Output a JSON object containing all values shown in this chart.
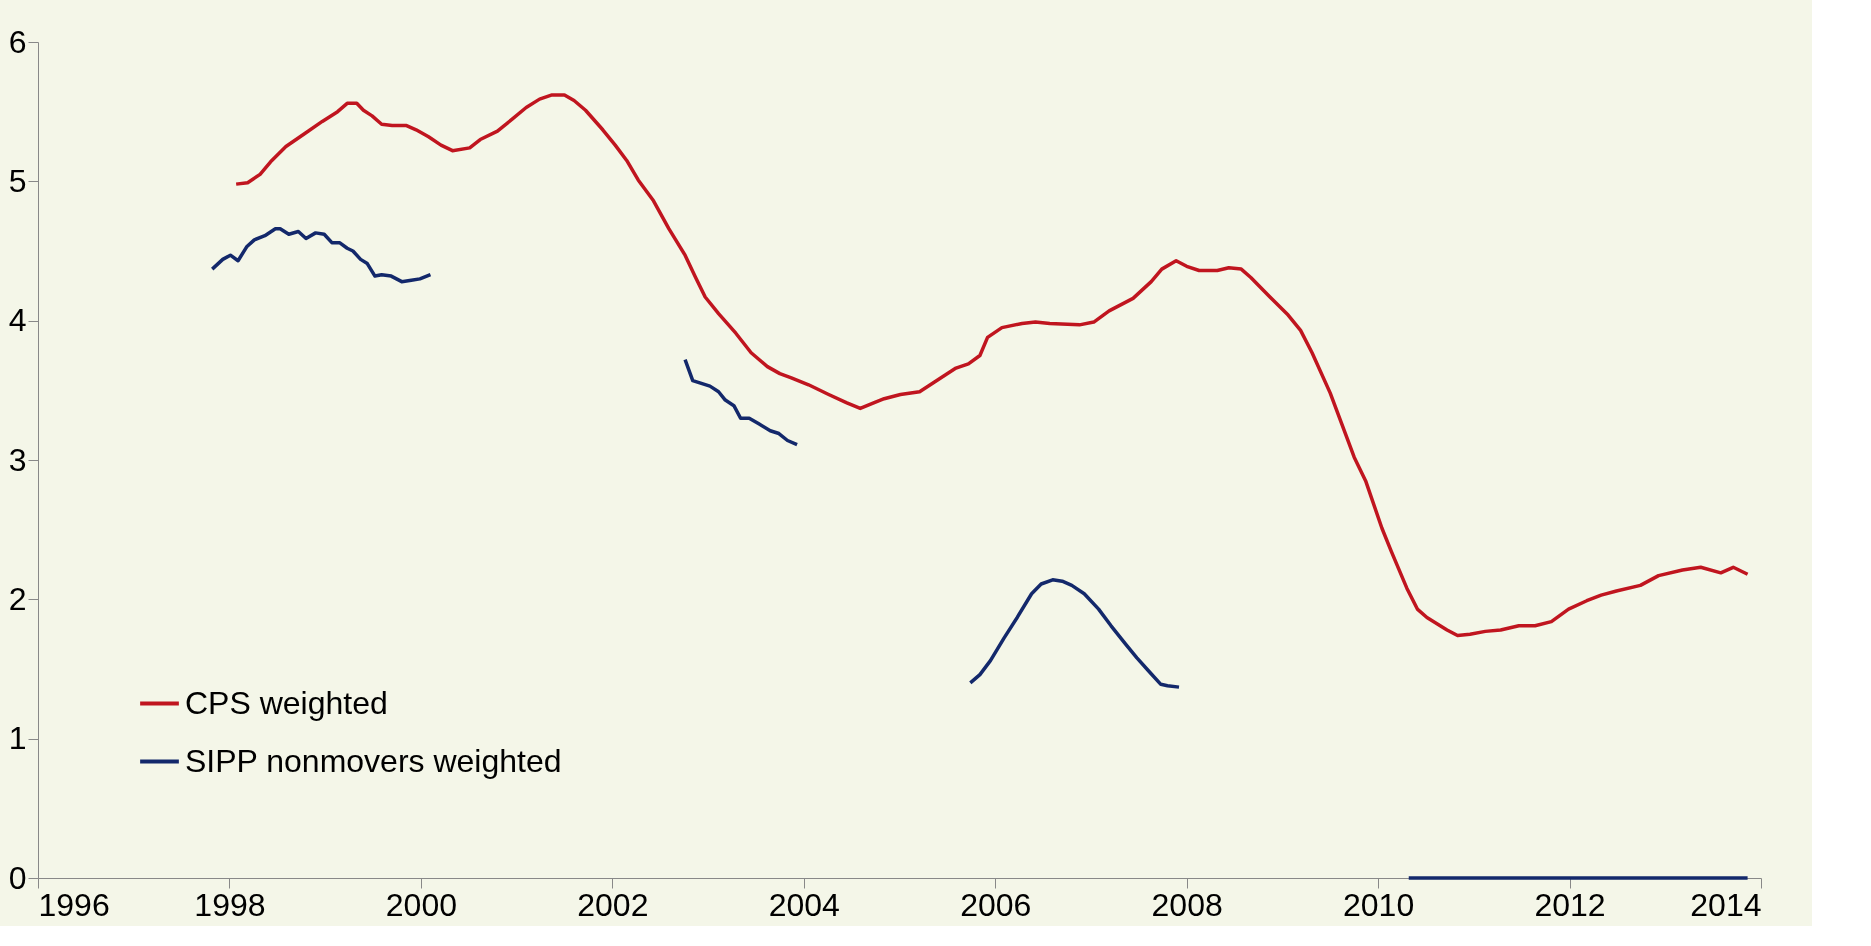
{
  "chart_data": {
    "type": "line",
    "xlim": [
      1996,
      2014
    ],
    "xticks": [
      1996,
      1998,
      2000,
      2002,
      2004,
      2006,
      2008,
      2010,
      2012,
      2014
    ],
    "ylim": [
      0,
      6
    ],
    "yticks": [
      0,
      1,
      2,
      3,
      4,
      5,
      6
    ],
    "grid": false,
    "legend": "bottom left",
    "line_style": "solid",
    "marker": "none",
    "series": [
      {
        "name": "CPS weighted",
        "color": "#c0151f",
        "x": [
          1998.07,
          1998.19,
          1998.32,
          1998.43,
          1998.59,
          1998.78,
          1998.97,
          1999.13,
          1999.23,
          1999.33,
          1999.4,
          1999.49,
          1999.59,
          1999.7,
          1999.85,
          1999.95,
          2000.08,
          2000.21,
          2000.33,
          2000.51,
          2000.62,
          2000.8,
          2000.96,
          2001.1,
          2001.24,
          2001.37,
          2001.5,
          2001.6,
          2001.72,
          2001.9,
          2002.03,
          2002.15,
          2002.27,
          2002.43,
          2002.59,
          2002.76,
          2002.87,
          2002.97,
          2003.11,
          2003.29,
          2003.45,
          2003.62,
          2003.75,
          2003.87,
          2004.05,
          2004.26,
          2004.45,
          2004.59,
          2004.73,
          2004.84,
          2005.01,
          2005.21,
          2005.41,
          2005.59,
          2005.72,
          2005.84,
          2005.92,
          2006.07,
          2006.28,
          2006.42,
          2006.57,
          2006.88,
          2007.03,
          2007.19,
          2007.44,
          2007.63,
          2007.74,
          2007.89,
          2008.0,
          2008.13,
          2008.32,
          2008.44,
          2008.57,
          2008.67,
          2008.87,
          2009.06,
          2009.19,
          2009.31,
          2009.5,
          2009.75,
          2009.87,
          2010.04,
          2010.14,
          2010.3,
          2010.41,
          2010.51,
          2010.72,
          2010.83,
          2010.96,
          2011.12,
          2011.28,
          2011.47,
          2011.64,
          2011.81,
          2011.99,
          2012.18,
          2012.33,
          2012.49,
          2012.74,
          2012.93,
          2013.18,
          2013.37,
          2013.58,
          2013.71,
          2013.86
        ],
        "values": [
          4.98,
          4.99,
          5.05,
          5.14,
          5.25,
          5.34,
          5.43,
          5.5,
          5.56,
          5.56,
          5.51,
          5.47,
          5.41,
          5.4,
          5.4,
          5.37,
          5.32,
          5.26,
          5.22,
          5.24,
          5.3,
          5.36,
          5.45,
          5.53,
          5.59,
          5.62,
          5.62,
          5.58,
          5.51,
          5.37,
          5.26,
          5.15,
          5.01,
          4.86,
          4.66,
          4.47,
          4.31,
          4.17,
          4.05,
          3.91,
          3.77,
          3.67,
          3.62,
          3.59,
          3.54,
          3.47,
          3.41,
          3.37,
          3.41,
          3.44,
          3.47,
          3.49,
          3.58,
          3.66,
          3.69,
          3.75,
          3.88,
          3.95,
          3.98,
          3.99,
          3.98,
          3.97,
          3.99,
          4.07,
          4.16,
          4.28,
          4.37,
          4.43,
          4.39,
          4.36,
          4.36,
          4.38,
          4.37,
          4.31,
          4.17,
          4.04,
          3.93,
          3.77,
          3.48,
          3.02,
          2.85,
          2.51,
          2.34,
          2.08,
          1.93,
          1.87,
          1.78,
          1.74,
          1.75,
          1.77,
          1.78,
          1.81,
          1.81,
          1.84,
          1.93,
          1.99,
          2.03,
          2.06,
          2.1,
          2.17,
          2.21,
          2.23,
          2.19,
          2.23,
          2.18
        ]
      },
      {
        "name": "SIPP nonmovers weighted",
        "color": "#13286b",
        "x": [
          1997.82,
          1997.93,
          1998.01,
          1998.09,
          1998.18,
          1998.26,
          1998.37,
          1998.48,
          1998.53,
          1998.62,
          1998.72,
          1998.8,
          1998.9,
          1998.99,
          1999.07,
          1999.15,
          1999.23,
          1999.29,
          1999.37,
          1999.44,
          1999.52,
          1999.59,
          1999.69,
          1999.8,
          1999.9,
          1999.99,
          2000.1,
          null,
          2002.76,
          2002.84,
          2003.02,
          2003.11,
          2003.18,
          2003.27,
          2003.34,
          2003.43,
          2003.53,
          2003.65,
          2003.74,
          2003.83,
          2003.93,
          null,
          2005.74,
          2005.84,
          2005.95,
          2006.09,
          2006.23,
          2006.38,
          2006.48,
          2006.6,
          2006.7,
          2006.8,
          2006.93,
          2007.08,
          2007.21,
          2007.36,
          2007.48,
          2007.61,
          2007.73,
          2007.8,
          2007.92,
          null,
          2010.32,
          2013.86
        ],
        "values": [
          4.37,
          4.44,
          4.47,
          4.43,
          4.53,
          4.58,
          4.61,
          4.66,
          4.66,
          4.62,
          4.64,
          4.59,
          4.63,
          4.62,
          4.56,
          4.56,
          4.52,
          4.5,
          4.44,
          4.41,
          4.32,
          4.33,
          4.32,
          4.28,
          4.29,
          4.3,
          4.33,
          null,
          3.72,
          3.57,
          3.53,
          3.49,
          3.43,
          3.39,
          3.3,
          3.3,
          3.26,
          3.21,
          3.19,
          3.14,
          3.11,
          null,
          1.4,
          1.46,
          1.56,
          1.72,
          1.87,
          2.04,
          2.11,
          2.14,
          2.13,
          2.1,
          2.04,
          1.93,
          1.81,
          1.68,
          1.58,
          1.48,
          1.39,
          1.38,
          1.37,
          null,
          0,
          0
        ]
      }
    ]
  }
}
